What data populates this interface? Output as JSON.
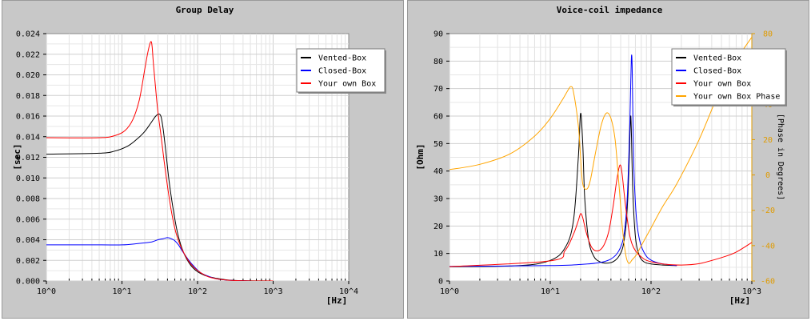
{
  "chart_data": [
    {
      "type": "line",
      "title": "Group Delay",
      "xlabel": "[Hz]",
      "ylabel": "[sec]",
      "xscale": "log",
      "xlim": [
        1,
        10000
      ],
      "ylim": [
        0,
        0.024
      ],
      "xticks": [
        "10^0",
        "10^1",
        "10^2",
        "10^3",
        "10^4"
      ],
      "yticks": [
        "0.000",
        "0.002",
        "0.004",
        "0.006",
        "0.008",
        "0.010",
        "0.012",
        "0.014",
        "0.016",
        "0.018",
        "0.020",
        "0.022",
        "0.024"
      ],
      "grid": true,
      "legend_position": "top-right",
      "series": [
        {
          "name": "Vented-Box",
          "color": "#000000",
          "x": [
            1,
            5,
            8,
            12,
            16,
            20,
            24,
            28,
            31,
            33,
            35,
            38,
            42,
            48,
            55,
            65,
            80,
            100,
            130,
            180,
            250,
            400,
            700,
            1000
          ],
          "y": [
            0.0123,
            0.0124,
            0.0126,
            0.0131,
            0.0138,
            0.0145,
            0.0153,
            0.016,
            0.0162,
            0.0159,
            0.0148,
            0.0126,
            0.0097,
            0.0068,
            0.0045,
            0.0028,
            0.0016,
            0.0009,
            0.0005,
            0.00025,
            0.0001,
            3e-05,
            1e-05,
            0.0
          ]
        },
        {
          "name": "Closed-Box",
          "color": "#0000ff",
          "x": [
            1,
            5,
            10,
            15,
            20,
            25,
            30,
            35,
            40,
            45,
            50,
            56,
            63,
            75,
            90,
            110,
            140,
            180,
            250,
            400,
            700,
            1000
          ],
          "y": [
            0.0035,
            0.0035,
            0.0035,
            0.0036,
            0.0037,
            0.0038,
            0.004,
            0.0041,
            0.0042,
            0.0041,
            0.0039,
            0.0035,
            0.0029,
            0.0021,
            0.0014,
            0.0008,
            0.00045,
            0.0002,
            8e-05,
            2e-05,
            0.0,
            0.0
          ]
        },
        {
          "name": "Your own Box",
          "color": "#ff0000",
          "x": [
            1,
            5,
            8,
            11,
            14,
            17,
            20,
            22,
            24,
            25,
            26,
            28,
            30,
            33,
            36,
            40,
            45,
            50,
            56,
            63,
            75,
            90,
            110,
            140,
            180,
            250,
            400,
            700,
            1000
          ],
          "y": [
            0.0139,
            0.0139,
            0.0141,
            0.0146,
            0.0157,
            0.0176,
            0.0205,
            0.0222,
            0.0232,
            0.0228,
            0.0212,
            0.0185,
            0.0163,
            0.014,
            0.0117,
            0.0092,
            0.0068,
            0.0051,
            0.0039,
            0.003,
            0.002,
            0.0013,
            0.0008,
            0.0004,
            0.0002,
            8e-05,
            2e-05,
            0.0,
            0.0
          ]
        }
      ]
    },
    {
      "type": "line",
      "title": "Voice-coil impedance",
      "xlabel": "[Hz]",
      "ylabel": "[Ohm]",
      "y2label": "[Phase in Degrees]",
      "xscale": "log",
      "xlim": [
        1,
        1000
      ],
      "ylim": [
        0,
        90
      ],
      "y2lim": [
        -60,
        80
      ],
      "xticks": [
        "10^0",
        "10^1",
        "10^2",
        "10^3"
      ],
      "yticks": [
        "0",
        "10",
        "20",
        "30",
        "40",
        "50",
        "60",
        "70",
        "80",
        "90"
      ],
      "y2ticks": [
        "-60",
        "-40",
        "-20",
        "0",
        "20",
        "40",
        "60",
        "80"
      ],
      "grid": true,
      "legend_position": "top-right",
      "series": [
        {
          "name": "Vented-Box",
          "color": "#000000",
          "axis": "left",
          "x": [
            1,
            5,
            10,
            14,
            17,
            19,
            20,
            21,
            22,
            24,
            27,
            31,
            36,
            42,
            48,
            53,
            57,
            60,
            62,
            63,
            64,
            66,
            70,
            76,
            85,
            100,
            130,
            180
          ],
          "y": [
            5.2,
            5.6,
            7.5,
            12,
            22,
            45,
            61,
            50,
            30,
            15,
            9,
            7,
            6.5,
            7,
            9,
            13,
            22,
            38,
            55,
            60,
            52,
            32,
            16,
            9.5,
            7,
            6.2,
            5.8,
            5.6
          ]
        },
        {
          "name": "Closed-Box",
          "color": "#0000ff",
          "axis": "left",
          "x": [
            1,
            10,
            20,
            30,
            40,
            48,
            54,
            58,
            61,
            63,
            64,
            65,
            66,
            68,
            72,
            78,
            88,
            100,
            120,
            150,
            180
          ],
          "y": [
            5.3,
            5.6,
            6.0,
            6.6,
            8.0,
            11,
            17,
            30,
            52,
            73,
            82,
            78,
            60,
            38,
            22,
            14,
            9.5,
            7.6,
            6.5,
            5.9,
            5.6
          ]
        },
        {
          "name": "Your own Box",
          "color": "#ff0000",
          "axis": "left",
          "x": [
            1,
            10,
            14,
            17,
            19,
            20,
            21,
            23,
            26,
            30,
            34,
            38,
            42,
            45,
            48,
            50,
            52,
            56,
            62,
            70,
            85,
            100,
            130,
            200,
            300,
            500,
            700,
            1000
          ],
          "y": [
            5.2,
            7.3,
            11,
            17,
            22,
            24.5,
            23,
            17,
            12,
            11,
            13,
            18,
            27,
            35,
            41,
            42,
            38,
            27,
            16,
            11,
            8,
            7,
            6.2,
            5.8,
            6.3,
            8.5,
            10.5,
            14
          ]
        },
        {
          "name": "Your own Box Phase",
          "color": "#ffa500",
          "axis": "right",
          "x": [
            1,
            2,
            4,
            7,
            10,
            13,
            15,
            16,
            17,
            19,
            20,
            21,
            23,
            25,
            28,
            32,
            36,
            40,
            44,
            48,
            52,
            56,
            60,
            65,
            72,
            80,
            100,
            130,
            180,
            300,
            500,
            700,
            1000
          ],
          "y": [
            3,
            6,
            12,
            22,
            32,
            42,
            48,
            50,
            47,
            28,
            10,
            -5,
            -8,
            -3,
            12,
            28,
            35,
            32,
            20,
            -5,
            -30,
            -45,
            -50,
            -48,
            -45,
            -40,
            -30,
            -18,
            -5,
            20,
            50,
            65,
            78
          ]
        }
      ]
    }
  ]
}
